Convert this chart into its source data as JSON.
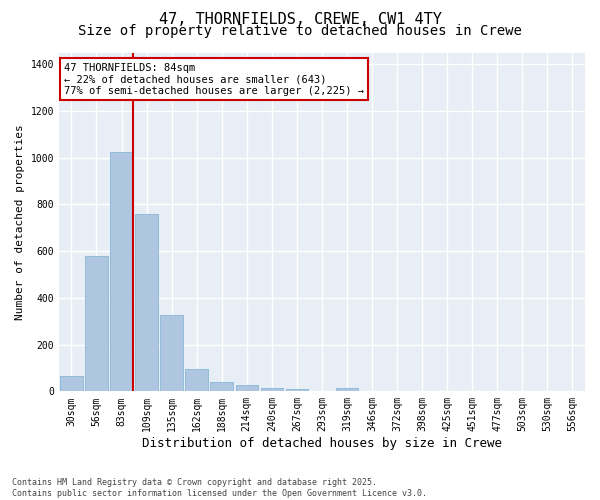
{
  "title_line1": "47, THORNFIELDS, CREWE, CW1 4TY",
  "title_line2": "Size of property relative to detached houses in Crewe",
  "xlabel": "Distribution of detached houses by size in Crewe",
  "ylabel": "Number of detached properties",
  "categories": [
    "30sqm",
    "56sqm",
    "83sqm",
    "109sqm",
    "135sqm",
    "162sqm",
    "188sqm",
    "214sqm",
    "240sqm",
    "267sqm",
    "293sqm",
    "319sqm",
    "346sqm",
    "372sqm",
    "398sqm",
    "425sqm",
    "451sqm",
    "477sqm",
    "503sqm",
    "530sqm",
    "556sqm"
  ],
  "values": [
    65,
    578,
    1025,
    758,
    325,
    95,
    38,
    25,
    15,
    8,
    0,
    15,
    0,
    0,
    0,
    0,
    0,
    0,
    0,
    0,
    0
  ],
  "highlight_bar_index": 2,
  "bar_color": "#aec6e0",
  "bar_edge_color": "#7bafd4",
  "vline_color": "#cc0000",
  "annotation_text": "47 THORNFIELDS: 84sqm\n← 22% of detached houses are smaller (643)\n77% of semi-detached houses are larger (2,225) →",
  "annotation_box_color": "#cc0000",
  "ylim": [
    0,
    1450
  ],
  "yticks": [
    0,
    200,
    400,
    600,
    800,
    1000,
    1200,
    1400
  ],
  "background_color": "#e8eef5",
  "grid_color": "#ffffff",
  "footer_text": "Contains HM Land Registry data © Crown copyright and database right 2025.\nContains public sector information licensed under the Open Government Licence v3.0.",
  "title_fontsize": 11,
  "subtitle_fontsize": 10,
  "xlabel_fontsize": 9,
  "ylabel_fontsize": 8,
  "tick_fontsize": 7,
  "annot_fontsize": 7.5
}
